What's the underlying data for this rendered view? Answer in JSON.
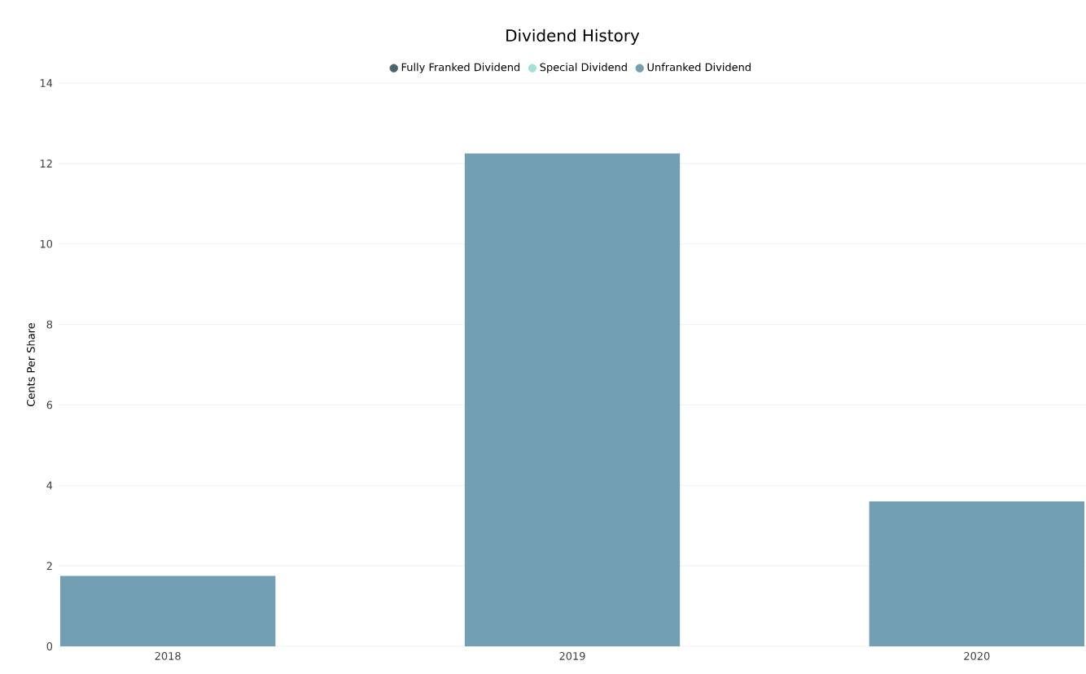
{
  "chart_data": {
    "type": "bar",
    "title": "Dividend History",
    "ylabel": "Cents Per Share",
    "categories": [
      "2018",
      "2019",
      "2020"
    ],
    "series": [
      {
        "name": "Fully Franked Dividend",
        "color": "#4a6572",
        "values": [
          null,
          null,
          null
        ]
      },
      {
        "name": "Special Dividend",
        "color": "#a5e0d9",
        "values": [
          null,
          null,
          null
        ]
      },
      {
        "name": "Unfranked Dividend",
        "color": "#72a0b2",
        "values": [
          1.75,
          12.25,
          3.6
        ]
      }
    ],
    "ylim": [
      0,
      14
    ],
    "yticks": [
      0,
      2,
      4,
      6,
      8,
      10,
      12,
      14
    ],
    "grid": "y",
    "legend": "top"
  }
}
